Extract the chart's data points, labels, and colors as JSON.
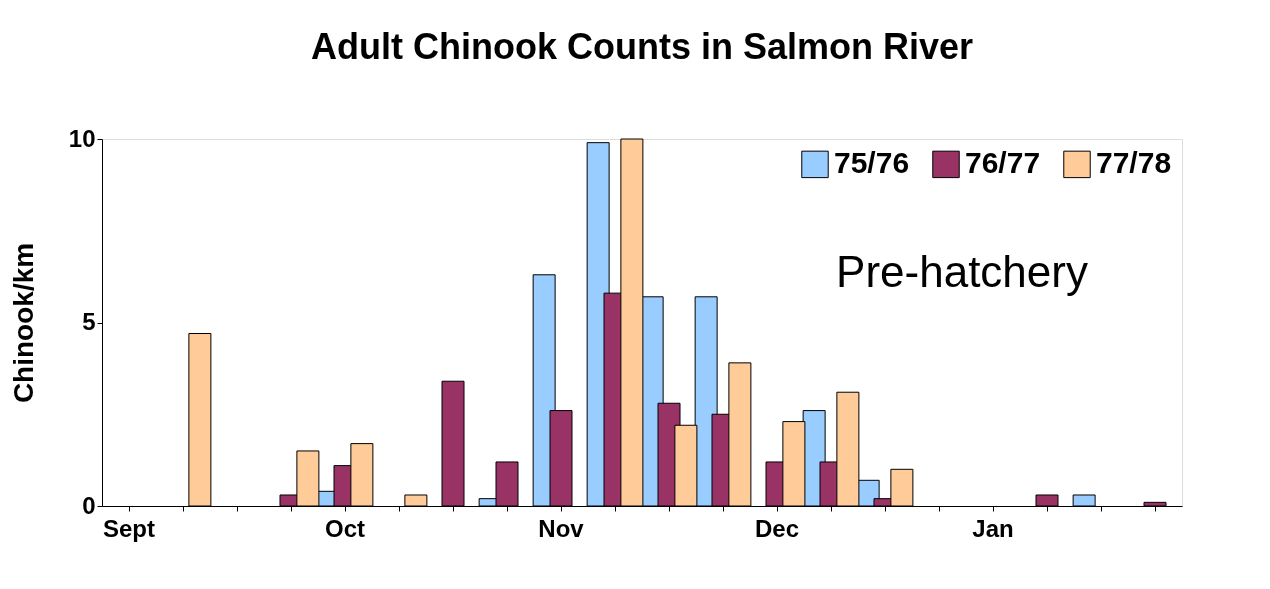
{
  "chart_data": {
    "type": "bar",
    "title": "Adult Chinook Counts in Salmon River",
    "ylabel": "Chinook/km",
    "categories": [
      "Sept",
      null,
      null,
      null,
      "Oct",
      null,
      null,
      null,
      "Nov",
      null,
      null,
      null,
      "Dec",
      null,
      null,
      null,
      "Jan",
      null,
      null,
      null
    ],
    "series": [
      {
        "name": "75/76",
        "color": "#99ccff",
        "values": [
          null,
          null,
          null,
          null,
          0.4,
          null,
          null,
          0.2,
          6.3,
          9.9,
          5.7,
          5.7,
          null,
          2.6,
          0.7,
          null,
          null,
          null,
          0.3,
          null
        ]
      },
      {
        "name": "76/77",
        "color": "#993366",
        "values": [
          null,
          null,
          null,
          0.3,
          1.1,
          null,
          3.4,
          1.2,
          2.6,
          5.8,
          2.8,
          2.5,
          1.2,
          1.2,
          0.2,
          null,
          null,
          0.3,
          null,
          0.1
        ]
      },
      {
        "name": "77/78",
        "color": "#ffcc99",
        "values": [
          null,
          4.7,
          null,
          1.5,
          1.7,
          0.3,
          null,
          null,
          null,
          10.0,
          2.2,
          3.9,
          2.3,
          3.1,
          1.0,
          null,
          null,
          null,
          null,
          null
        ]
      }
    ],
    "ylim": [
      0,
      10
    ],
    "yticks": [
      0,
      5,
      10
    ],
    "grid": false,
    "legend": "top right",
    "annotations": [
      "Pre-hatchery"
    ]
  }
}
